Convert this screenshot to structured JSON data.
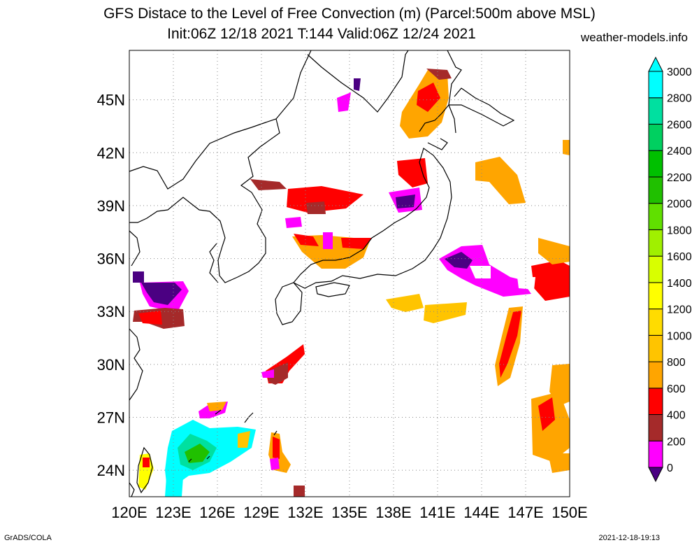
{
  "header": {
    "title": "GFS Distace to the Level of Free Convection (m) (Parcel:500m above MSL)",
    "subtitle": "Init:06Z 12/18 2021 T:144 Valid:06Z 12/24 2021",
    "site": "weather-models.info"
  },
  "footer": {
    "left": "GrADS/COLA",
    "right": "2021-12-18-19:13"
  },
  "map": {
    "lon_range": [
      120,
      150
    ],
    "lat_range": [
      22.5,
      47.8
    ],
    "lon_ticks": [
      "120E",
      "123E",
      "126E",
      "129E",
      "132E",
      "135E",
      "138E",
      "141E",
      "144E",
      "147E",
      "150E"
    ],
    "lat_ticks": [
      "24N",
      "27N",
      "30N",
      "33N",
      "36N",
      "39N",
      "42N",
      "45N"
    ],
    "grid": true
  },
  "colorbar": {
    "levels": [
      "0",
      "200",
      "400",
      "600",
      "800",
      "1000",
      "1200",
      "1400",
      "1600",
      "1800",
      "2000",
      "2200",
      "2400",
      "2600",
      "2800",
      "3000"
    ],
    "colors": [
      "#4b0082",
      "#ff00ff",
      "#a52a2a",
      "#ff0000",
      "#ffa500",
      "#ffc400",
      "#ffdc00",
      "#ffff00",
      "#d8ff00",
      "#a0f000",
      "#60e000",
      "#20c000",
      "#00c000",
      "#00d060",
      "#00e0a0",
      "#00ffff"
    ]
  }
}
